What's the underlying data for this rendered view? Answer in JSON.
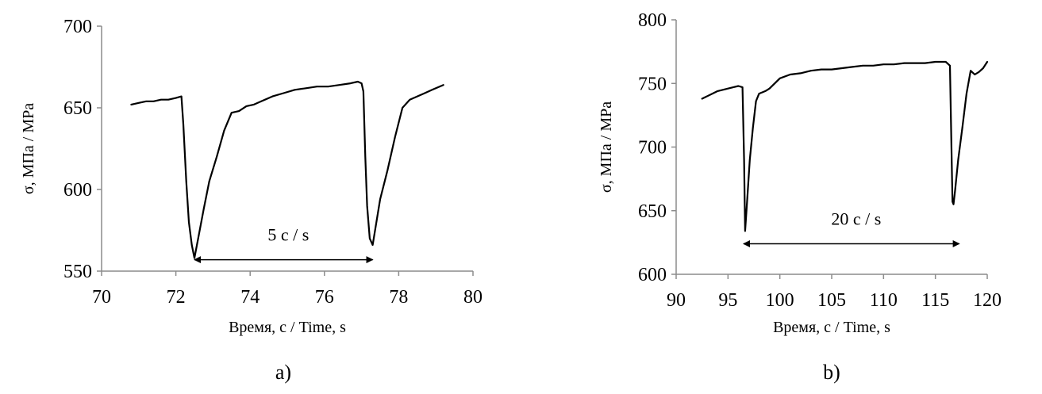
{
  "chart_data": [
    {
      "type": "line",
      "panel_label": "a)",
      "xlabel": "Время, с / Time, s",
      "ylabel": "σ, МПа / MPa",
      "xlim": [
        70,
        80
      ],
      "ylim": [
        550,
        700
      ],
      "xticks": [
        70,
        72,
        74,
        76,
        78,
        80
      ],
      "yticks": [
        550,
        600,
        650,
        700
      ],
      "grid": false,
      "legend": "none",
      "annotation": {
        "text": "5 с / s",
        "x_start": 72.5,
        "x_end": 77.3,
        "y": 557
      },
      "series": [
        {
          "color": "#000000",
          "x": [
            70.8,
            71.0,
            71.2,
            71.4,
            71.6,
            71.8,
            72.0,
            72.15,
            72.2,
            72.28,
            72.35,
            72.43,
            72.5,
            72.6,
            72.75,
            72.9,
            73.1,
            73.3,
            73.5,
            73.7,
            73.9,
            74.1,
            74.3,
            74.6,
            74.9,
            75.2,
            75.5,
            75.8,
            76.1,
            76.4,
            76.7,
            76.9,
            77.0,
            77.05,
            77.1,
            77.15,
            77.22,
            77.3,
            77.4,
            77.5,
            77.7,
            77.9,
            78.1,
            78.3,
            78.5,
            78.7,
            78.9,
            79.2
          ],
          "y": [
            652,
            653,
            654,
            654,
            655,
            655,
            656,
            657,
            640,
            605,
            580,
            566,
            558,
            570,
            588,
            605,
            620,
            636,
            647,
            648,
            651,
            652,
            654,
            657,
            659,
            661,
            662,
            663,
            663,
            664,
            665,
            666,
            665,
            660,
            620,
            590,
            570,
            566,
            580,
            594,
            612,
            632,
            650,
            655,
            657,
            659,
            661,
            664
          ]
        }
      ]
    },
    {
      "type": "line",
      "panel_label": "b)",
      "xlabel": "Время, с / Time, s",
      "ylabel": "σ, МПа / МРа",
      "xlim": [
        90,
        120
      ],
      "ylim": [
        600,
        800
      ],
      "xticks": [
        90,
        95,
        100,
        105,
        110,
        115,
        120
      ],
      "yticks": [
        600,
        650,
        700,
        750,
        800
      ],
      "grid": false,
      "legend": "none",
      "annotation": {
        "text": "20 с / s",
        "x_start": 96.5,
        "x_end": 117.3,
        "y": 624
      },
      "series": [
        {
          "color": "#000000",
          "x": [
            92.5,
            93.0,
            93.5,
            94.0,
            94.5,
            95.0,
            95.5,
            96.0,
            96.4,
            96.55,
            96.65,
            96.75,
            96.9,
            97.1,
            97.4,
            97.7,
            98.0,
            98.3,
            98.6,
            99.0,
            99.5,
            100.0,
            101.0,
            102.0,
            103.0,
            104.0,
            105.0,
            106.0,
            107.0,
            108.0,
            109.0,
            110.0,
            111.0,
            112.0,
            113.0,
            114.0,
            115.0,
            116.0,
            116.4,
            116.55,
            116.65,
            116.75,
            116.9,
            117.2,
            117.6,
            118.0,
            118.4,
            118.8,
            119.2,
            119.6,
            120.0
          ],
          "y": [
            738,
            740,
            742,
            744,
            745,
            746,
            747,
            748,
            747,
            690,
            634,
            646,
            665,
            690,
            715,
            736,
            742,
            743,
            744,
            746,
            750,
            754,
            757,
            758,
            760,
            761,
            761,
            762,
            763,
            764,
            764,
            765,
            765,
            766,
            766,
            766,
            767,
            767,
            764,
            700,
            657,
            655,
            666,
            690,
            715,
            742,
            760,
            757,
            759,
            762,
            767
          ]
        }
      ]
    }
  ]
}
